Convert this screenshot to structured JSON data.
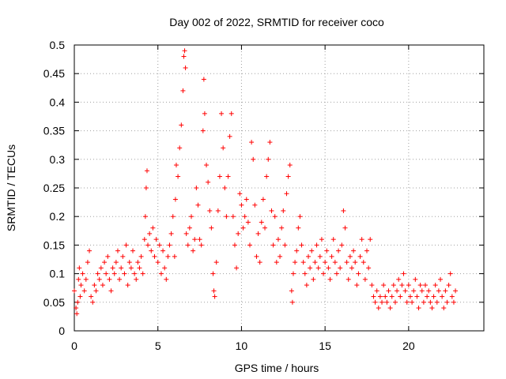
{
  "chart_data": {
    "type": "scatter",
    "title": "Day 002 of 2022, SRMTID for receiver coco",
    "xlabel": "GPS time / hours",
    "ylabel": "SRMTID / TECUs",
    "xlim": [
      0,
      24.5
    ],
    "ylim": [
      0,
      0.5
    ],
    "xticks": [
      0,
      5,
      10,
      15,
      20
    ],
    "xtick_labels": [
      "0",
      "5",
      "10",
      "15",
      "20"
    ],
    "yticks": [
      0,
      0.05,
      0.1,
      0.15,
      0.2,
      0.25,
      0.3,
      0.35,
      0.4,
      0.45,
      0.5
    ],
    "ytick_labels": [
      "0",
      "0.05",
      "0.1",
      "0.15",
      "0.2",
      "0.25",
      "0.3",
      "0.35",
      "0.4",
      "0.45",
      "0.5"
    ],
    "grid": true,
    "marker": "+",
    "color": "#ff0000",
    "series": [
      {
        "name": "SRMTID",
        "points": [
          [
            0.0,
            0.07
          ],
          [
            0.1,
            0.04
          ],
          [
            0.15,
            0.03
          ],
          [
            0.2,
            0.05
          ],
          [
            0.25,
            0.09
          ],
          [
            0.3,
            0.11
          ],
          [
            0.35,
            0.06
          ],
          [
            0.4,
            0.08
          ],
          [
            0.5,
            0.1
          ],
          [
            0.6,
            0.07
          ],
          [
            0.7,
            0.09
          ],
          [
            0.8,
            0.12
          ],
          [
            0.9,
            0.14
          ],
          [
            1.0,
            0.06
          ],
          [
            1.1,
            0.05
          ],
          [
            1.2,
            0.08
          ],
          [
            1.3,
            0.07
          ],
          [
            1.4,
            0.1
          ],
          [
            1.5,
            0.09
          ],
          [
            1.6,
            0.11
          ],
          [
            1.7,
            0.08
          ],
          [
            1.8,
            0.12
          ],
          [
            1.9,
            0.1
          ],
          [
            2.0,
            0.13
          ],
          [
            2.1,
            0.09
          ],
          [
            2.2,
            0.07
          ],
          [
            2.3,
            0.11
          ],
          [
            2.4,
            0.1
          ],
          [
            2.5,
            0.12
          ],
          [
            2.6,
            0.14
          ],
          [
            2.7,
            0.09
          ],
          [
            2.8,
            0.11
          ],
          [
            2.9,
            0.13
          ],
          [
            3.0,
            0.1
          ],
          [
            3.1,
            0.15
          ],
          [
            3.2,
            0.08
          ],
          [
            3.3,
            0.12
          ],
          [
            3.4,
            0.11
          ],
          [
            3.5,
            0.14
          ],
          [
            3.6,
            0.1
          ],
          [
            3.7,
            0.09
          ],
          [
            3.8,
            0.12
          ],
          [
            3.9,
            0.11
          ],
          [
            4.0,
            0.13
          ],
          [
            4.1,
            0.1
          ],
          [
            4.2,
            0.16
          ],
          [
            4.25,
            0.2
          ],
          [
            4.3,
            0.25
          ],
          [
            4.35,
            0.28
          ],
          [
            4.4,
            0.15
          ],
          [
            4.5,
            0.17
          ],
          [
            4.6,
            0.14
          ],
          [
            4.7,
            0.18
          ],
          [
            4.8,
            0.13
          ],
          [
            4.9,
            0.16
          ],
          [
            5.0,
            0.12
          ],
          [
            5.1,
            0.15
          ],
          [
            5.2,
            0.1
          ],
          [
            5.3,
            0.14
          ],
          [
            5.4,
            0.11
          ],
          [
            5.5,
            0.09
          ],
          [
            5.6,
            0.13
          ],
          [
            5.7,
            0.15
          ],
          [
            5.8,
            0.17
          ],
          [
            5.9,
            0.2
          ],
          [
            6.0,
            0.13
          ],
          [
            6.05,
            0.23
          ],
          [
            6.1,
            0.29
          ],
          [
            6.2,
            0.27
          ],
          [
            6.3,
            0.32
          ],
          [
            6.4,
            0.36
          ],
          [
            6.5,
            0.42
          ],
          [
            6.55,
            0.48
          ],
          [
            6.6,
            0.49
          ],
          [
            6.65,
            0.46
          ],
          [
            6.7,
            0.17
          ],
          [
            6.8,
            0.15
          ],
          [
            6.9,
            0.18
          ],
          [
            7.0,
            0.2
          ],
          [
            7.1,
            0.14
          ],
          [
            7.2,
            0.16
          ],
          [
            7.3,
            0.25
          ],
          [
            7.4,
            0.22
          ],
          [
            7.5,
            0.16
          ],
          [
            7.6,
            0.15
          ],
          [
            7.7,
            0.35
          ],
          [
            7.75,
            0.44
          ],
          [
            7.8,
            0.38
          ],
          [
            7.9,
            0.29
          ],
          [
            8.0,
            0.26
          ],
          [
            8.1,
            0.21
          ],
          [
            8.2,
            0.18
          ],
          [
            8.3,
            0.1
          ],
          [
            8.35,
            0.07
          ],
          [
            8.4,
            0.06
          ],
          [
            8.5,
            0.12
          ],
          [
            8.6,
            0.21
          ],
          [
            8.7,
            0.27
          ],
          [
            8.8,
            0.38
          ],
          [
            8.9,
            0.32
          ],
          [
            9.0,
            0.25
          ],
          [
            9.1,
            0.2
          ],
          [
            9.2,
            0.27
          ],
          [
            9.3,
            0.34
          ],
          [
            9.4,
            0.38
          ],
          [
            9.5,
            0.2
          ],
          [
            9.6,
            0.15
          ],
          [
            9.7,
            0.11
          ],
          [
            9.8,
            0.17
          ],
          [
            9.9,
            0.24
          ],
          [
            10.0,
            0.22
          ],
          [
            10.1,
            0.18
          ],
          [
            10.2,
            0.2
          ],
          [
            10.3,
            0.23
          ],
          [
            10.4,
            0.19
          ],
          [
            10.5,
            0.15
          ],
          [
            10.6,
            0.33
          ],
          [
            10.7,
            0.3
          ],
          [
            10.8,
            0.22
          ],
          [
            10.9,
            0.13
          ],
          [
            11.0,
            0.17
          ],
          [
            11.1,
            0.12
          ],
          [
            11.2,
            0.19
          ],
          [
            11.3,
            0.23
          ],
          [
            11.4,
            0.18
          ],
          [
            11.5,
            0.27
          ],
          [
            11.6,
            0.3
          ],
          [
            11.7,
            0.33
          ],
          [
            11.8,
            0.21
          ],
          [
            11.9,
            0.15
          ],
          [
            12.0,
            0.2
          ],
          [
            12.1,
            0.12
          ],
          [
            12.2,
            0.16
          ],
          [
            12.3,
            0.13
          ],
          [
            12.4,
            0.18
          ],
          [
            12.5,
            0.21
          ],
          [
            12.6,
            0.15
          ],
          [
            12.7,
            0.24
          ],
          [
            12.8,
            0.27
          ],
          [
            12.9,
            0.29
          ],
          [
            13.0,
            0.07
          ],
          [
            13.05,
            0.05
          ],
          [
            13.1,
            0.1
          ],
          [
            13.2,
            0.12
          ],
          [
            13.3,
            0.14
          ],
          [
            13.4,
            0.18
          ],
          [
            13.5,
            0.2
          ],
          [
            13.6,
            0.15
          ],
          [
            13.7,
            0.12
          ],
          [
            13.8,
            0.1
          ],
          [
            13.9,
            0.08
          ],
          [
            14.0,
            0.13
          ],
          [
            14.1,
            0.11
          ],
          [
            14.2,
            0.14
          ],
          [
            14.3,
            0.09
          ],
          [
            14.4,
            0.12
          ],
          [
            14.5,
            0.15
          ],
          [
            14.6,
            0.11
          ],
          [
            14.7,
            0.13
          ],
          [
            14.8,
            0.16
          ],
          [
            14.9,
            0.1
          ],
          [
            15.0,
            0.12
          ],
          [
            15.1,
            0.14
          ],
          [
            15.2,
            0.11
          ],
          [
            15.3,
            0.09
          ],
          [
            15.4,
            0.13
          ],
          [
            15.5,
            0.16
          ],
          [
            15.6,
            0.12
          ],
          [
            15.7,
            0.1
          ],
          [
            15.8,
            0.14
          ],
          [
            15.9,
            0.11
          ],
          [
            16.0,
            0.15
          ],
          [
            16.1,
            0.21
          ],
          [
            16.2,
            0.18
          ],
          [
            16.3,
            0.12
          ],
          [
            16.4,
            0.09
          ],
          [
            16.5,
            0.13
          ],
          [
            16.6,
            0.11
          ],
          [
            16.7,
            0.14
          ],
          [
            16.8,
            0.12
          ],
          [
            16.9,
            0.08
          ],
          [
            17.0,
            0.1
          ],
          [
            17.1,
            0.13
          ],
          [
            17.2,
            0.16
          ],
          [
            17.3,
            0.12
          ],
          [
            17.4,
            0.09
          ],
          [
            17.5,
            0.14
          ],
          [
            17.6,
            0.11
          ],
          [
            17.7,
            0.16
          ],
          [
            17.8,
            0.08
          ],
          [
            17.9,
            0.06
          ],
          [
            18.0,
            0.05
          ],
          [
            18.1,
            0.07
          ],
          [
            18.2,
            0.04
          ],
          [
            18.3,
            0.06
          ],
          [
            18.4,
            0.05
          ],
          [
            18.5,
            0.08
          ],
          [
            18.6,
            0.06
          ],
          [
            18.7,
            0.05
          ],
          [
            18.8,
            0.07
          ],
          [
            18.9,
            0.04
          ],
          [
            19.0,
            0.06
          ],
          [
            19.1,
            0.08
          ],
          [
            19.2,
            0.05
          ],
          [
            19.3,
            0.07
          ],
          [
            19.4,
            0.09
          ],
          [
            19.5,
            0.06
          ],
          [
            19.6,
            0.08
          ],
          [
            19.7,
            0.1
          ],
          [
            19.8,
            0.07
          ],
          [
            19.9,
            0.05
          ],
          [
            20.0,
            0.08
          ],
          [
            20.1,
            0.06
          ],
          [
            20.2,
            0.05
          ],
          [
            20.3,
            0.07
          ],
          [
            20.4,
            0.09
          ],
          [
            20.5,
            0.06
          ],
          [
            20.6,
            0.04
          ],
          [
            20.7,
            0.08
          ],
          [
            20.8,
            0.07
          ],
          [
            20.9,
            0.05
          ],
          [
            21.0,
            0.08
          ],
          [
            21.1,
            0.06
          ],
          [
            21.2,
            0.07
          ],
          [
            21.3,
            0.05
          ],
          [
            21.4,
            0.04
          ],
          [
            21.5,
            0.06
          ],
          [
            21.6,
            0.08
          ],
          [
            21.7,
            0.05
          ],
          [
            21.8,
            0.07
          ],
          [
            21.9,
            0.09
          ],
          [
            22.0,
            0.06
          ],
          [
            22.1,
            0.04
          ],
          [
            22.2,
            0.07
          ],
          [
            22.3,
            0.05
          ],
          [
            22.4,
            0.08
          ],
          [
            22.5,
            0.1
          ],
          [
            22.6,
            0.06
          ],
          [
            22.7,
            0.05
          ],
          [
            22.8,
            0.07
          ]
        ]
      }
    ]
  }
}
